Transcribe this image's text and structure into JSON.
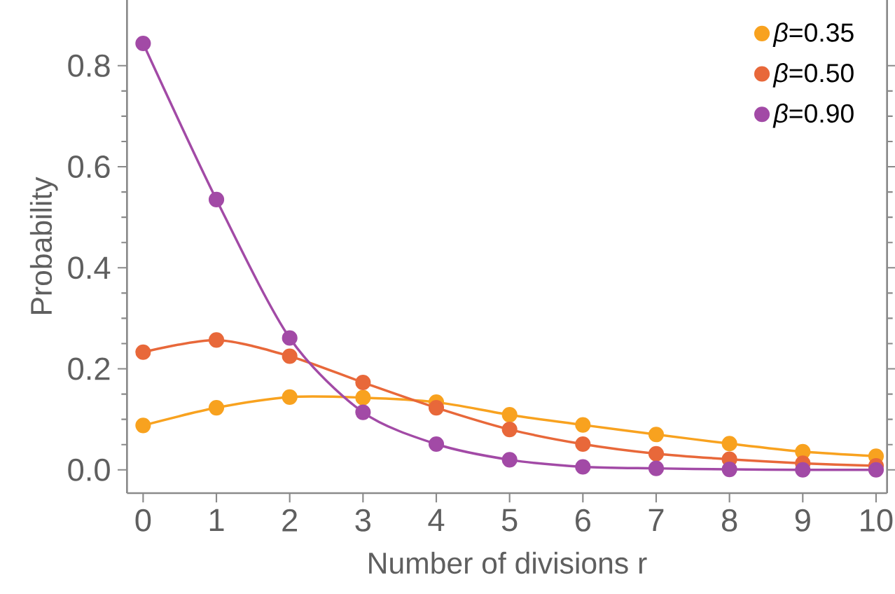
{
  "chart_data": {
    "type": "line",
    "xlabel": "Number of divisions r",
    "ylabel": "Probability",
    "x": [
      0,
      1,
      2,
      3,
      4,
      5,
      6,
      7,
      8,
      9,
      10
    ],
    "series": [
      {
        "name": "*β*=0.35",
        "color": "#f8a21f",
        "values": [
          0.088,
          0.123,
          0.144,
          0.143,
          0.134,
          0.109,
          0.089,
          0.07,
          0.052,
          0.036,
          0.027
        ]
      },
      {
        "name": "*β*=0.50",
        "color": "#e8683a",
        "values": [
          0.233,
          0.257,
          0.225,
          0.173,
          0.123,
          0.08,
          0.051,
          0.032,
          0.021,
          0.013,
          0.008
        ]
      },
      {
        "name": "*β*=0.90",
        "color": "#a24aa6",
        "values": [
          0.844,
          0.535,
          0.261,
          0.114,
          0.051,
          0.02,
          0.006,
          0.003,
          0.001,
          0.0,
          0.0
        ]
      }
    ],
    "xlim": [
      -0.22,
      10.15
    ],
    "ylim": [
      -0.046,
      0.93
    ],
    "xticks": [
      0,
      1,
      2,
      3,
      4,
      5,
      6,
      7,
      8,
      9,
      10
    ],
    "yticks": [
      {
        "value": 0,
        "label": "0.0"
      },
      {
        "value": 0.2,
        "label": "0.2"
      },
      {
        "value": 0.4,
        "label": "0.4"
      },
      {
        "value": 0.6,
        "label": "0.6"
      },
      {
        "value": 0.8,
        "label": "0.8"
      }
    ],
    "marker": "circle",
    "legend": "top right",
    "grid": false
  }
}
